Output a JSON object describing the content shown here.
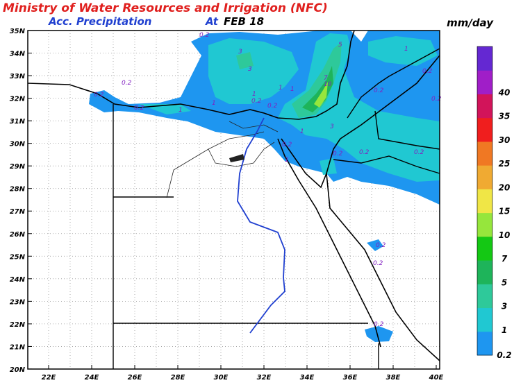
{
  "header": {
    "title": "Ministry of Water Resources and Irrigation (NFC)",
    "product": "Acc. Precipitation",
    "at": "At",
    "date": "FEB 18",
    "unit": "mm/day"
  },
  "map": {
    "lat_labels": [
      "35N",
      "34N",
      "33N",
      "32N",
      "31N",
      "30N",
      "29N",
      "28N",
      "27N",
      "26N",
      "25N",
      "24N",
      "23N",
      "22N",
      "21N",
      "20N"
    ],
    "lon_labels": [
      "22E",
      "24E",
      "26E",
      "28E",
      "30E",
      "32E",
      "34E",
      "36E",
      "38E",
      "40E"
    ],
    "contour_labels": [
      "0.2",
      "0.2",
      "0.2",
      "0.2",
      "3",
      "3",
      "1",
      "1",
      "1",
      "0.2",
      "0.2",
      "1",
      "10",
      "7",
      "5",
      "3",
      "1",
      "0.2",
      "1",
      "0.2",
      "0.2",
      "0.2",
      "0.2",
      "0.2",
      "0.2",
      "0.2",
      "0.2",
      "0.2",
      "1",
      "1"
    ]
  },
  "colorbar": {
    "labels": [
      "0.2",
      "1",
      "3",
      "5",
      "7",
      "10",
      "15",
      "20",
      "25",
      "30",
      "35",
      "40"
    ],
    "colors": [
      "#1e96f0",
      "#20c8d2",
      "#2ec99a",
      "#1eb45a",
      "#14c814",
      "#96e63c",
      "#f0e646",
      "#f0aa32",
      "#f07823",
      "#f01e1e",
      "#d2145a",
      "#a01ec8",
      "#6428d2"
    ]
  }
}
